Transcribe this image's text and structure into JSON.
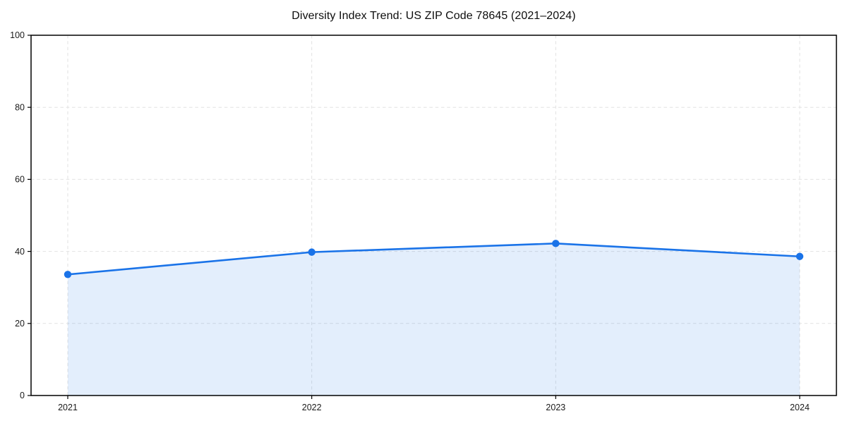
{
  "chart_data": {
    "type": "line",
    "title": "Diversity Index Trend: US ZIP Code 78645 (2021–2024)",
    "x_labels": [
      "2021",
      "2022",
      "2023",
      "2024"
    ],
    "series": [
      {
        "name": "Diversity Index",
        "values": [
          33.6,
          39.8,
          42.2,
          38.6
        ],
        "color": "#1a73e8",
        "marker": "circle",
        "marker_radius": 5.2,
        "line_width": 2.6,
        "area_fill": true,
        "area_opacity": 0.12
      }
    ],
    "xlabel": "",
    "ylabel": "",
    "ylim": [
      0,
      100
    ],
    "yticks": [
      0,
      20,
      40,
      60,
      80,
      100
    ],
    "grid": {
      "show": true,
      "style": "dashed",
      "color": "#e2e2e2"
    },
    "legend": {
      "show": false
    },
    "axes_color": "#000000",
    "background": "#ffffff"
  }
}
